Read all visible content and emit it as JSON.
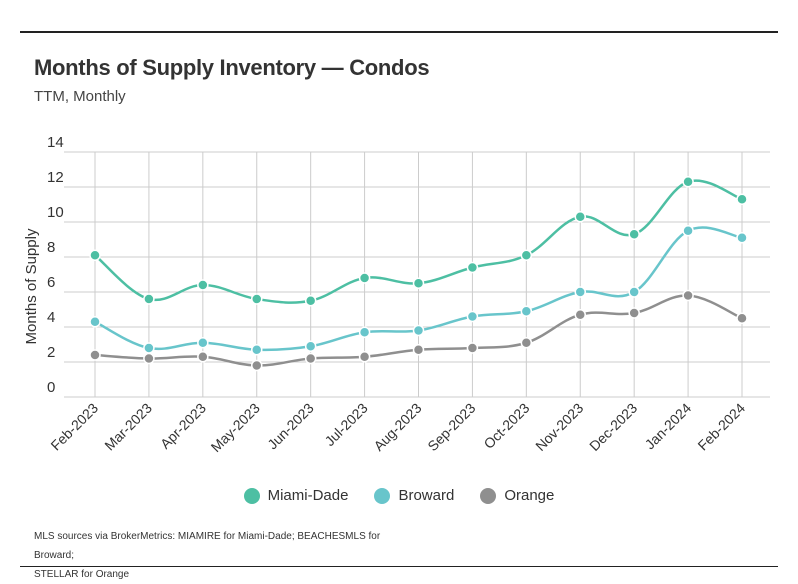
{
  "title": "Months of Supply Inventory — Condos",
  "subtitle": "TTM, Monthly",
  "source_line1": "MLS sources via BrokerMetrics: MIAMIRE for Miami-Dade; BEACHESMLS for Broward;",
  "source_line2": "STELLAR for Orange",
  "chart_data": {
    "type": "line",
    "categories": [
      "Feb-2023",
      "Mar-2023",
      "Apr-2023",
      "May-2023",
      "Jun-2023",
      "Jul-2023",
      "Aug-2023",
      "Sep-2023",
      "Oct-2023",
      "Nov-2023",
      "Dec-2023",
      "Jan-2024",
      "Feb-2024"
    ],
    "ylabel": "Months of Supply",
    "ylim": [
      0,
      14
    ],
    "yticks": [
      0,
      2,
      4,
      6,
      8,
      10,
      12,
      14
    ],
    "grid": true,
    "legend_position": "bottom",
    "series": [
      {
        "name": "Miami-Dade",
        "color": "#4dbfa3",
        "values": [
          8.1,
          5.6,
          6.4,
          5.6,
          5.5,
          6.8,
          6.5,
          7.4,
          8.1,
          10.3,
          9.3,
          12.3,
          11.3
        ]
      },
      {
        "name": "Broward",
        "color": "#68c5cb",
        "values": [
          4.3,
          2.8,
          3.1,
          2.7,
          2.9,
          3.7,
          3.8,
          4.6,
          4.9,
          6.0,
          6.0,
          9.5,
          9.1
        ]
      },
      {
        "name": "Orange",
        "color": "#8f8f8f",
        "values": [
          2.4,
          2.2,
          2.3,
          1.8,
          2.2,
          2.3,
          2.7,
          2.8,
          3.1,
          4.7,
          4.8,
          5.8,
          4.5
        ]
      }
    ]
  }
}
